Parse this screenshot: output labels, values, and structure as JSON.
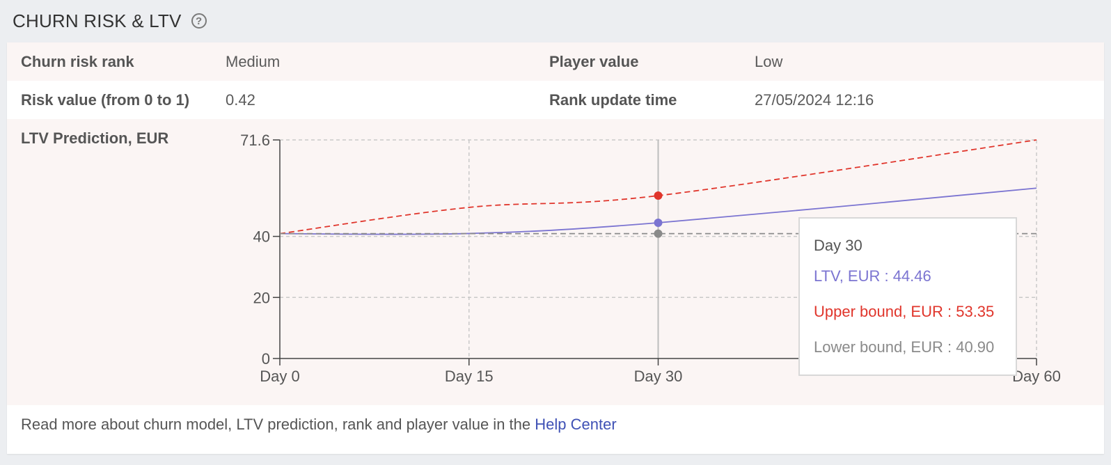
{
  "section": {
    "title": "CHURN RISK & LTV",
    "help_icon": "question-circle-icon"
  },
  "rows": {
    "churn_risk_rank": {
      "label": "Churn risk rank",
      "value": "Medium"
    },
    "player_value": {
      "label": "Player value",
      "value": "Low"
    },
    "risk_value": {
      "label": "Risk value (from 0 to 1)",
      "value": "0.42"
    },
    "rank_update_time": {
      "label": "Rank update time",
      "value": "27/05/2024 12:16"
    },
    "ltv_prediction": {
      "label": "LTV Prediction, EUR"
    }
  },
  "colors": {
    "ltv": "#7b74d1",
    "upper": "#e0352b",
    "lower": "#8a8a8a",
    "shaded_row": "#fbf5f4",
    "link": "#3f51b5"
  },
  "chart_data": {
    "type": "line",
    "x": [
      0,
      15,
      30,
      60
    ],
    "x_tick_labels": [
      "Day 0",
      "Day 15",
      "Day 30",
      "Day 60"
    ],
    "y_ticks": [
      0,
      20,
      40,
      71.6
    ],
    "ylim": [
      0,
      71.6
    ],
    "xlim": [
      0,
      60
    ],
    "grid": true,
    "series": [
      {
        "name": "LTV, EUR",
        "style": "solid",
        "values": [
          40.9,
          40.95,
          44.46,
          55.8
        ]
      },
      {
        "name": "Upper bound, EUR",
        "style": "dashed",
        "values": [
          40.9,
          49.5,
          53.35,
          71.6
        ]
      },
      {
        "name": "Lower bound, EUR",
        "style": "dashed",
        "values": [
          40.9,
          40.9,
          40.9,
          40.9
        ]
      }
    ],
    "tooltip": {
      "title": "Day 30",
      "x": 30,
      "items": [
        {
          "series": "LTV, EUR",
          "text": "LTV, EUR : 44.46"
        },
        {
          "series": "Upper bound, EUR",
          "text": "Upper bound, EUR : 53.35"
        },
        {
          "series": "Lower bound, EUR",
          "text": "Lower bound, EUR : 40.90"
        }
      ]
    }
  },
  "footer": {
    "text": "Read more about churn model, LTV prediction, rank and player value in the ",
    "link_label": "Help Center"
  }
}
